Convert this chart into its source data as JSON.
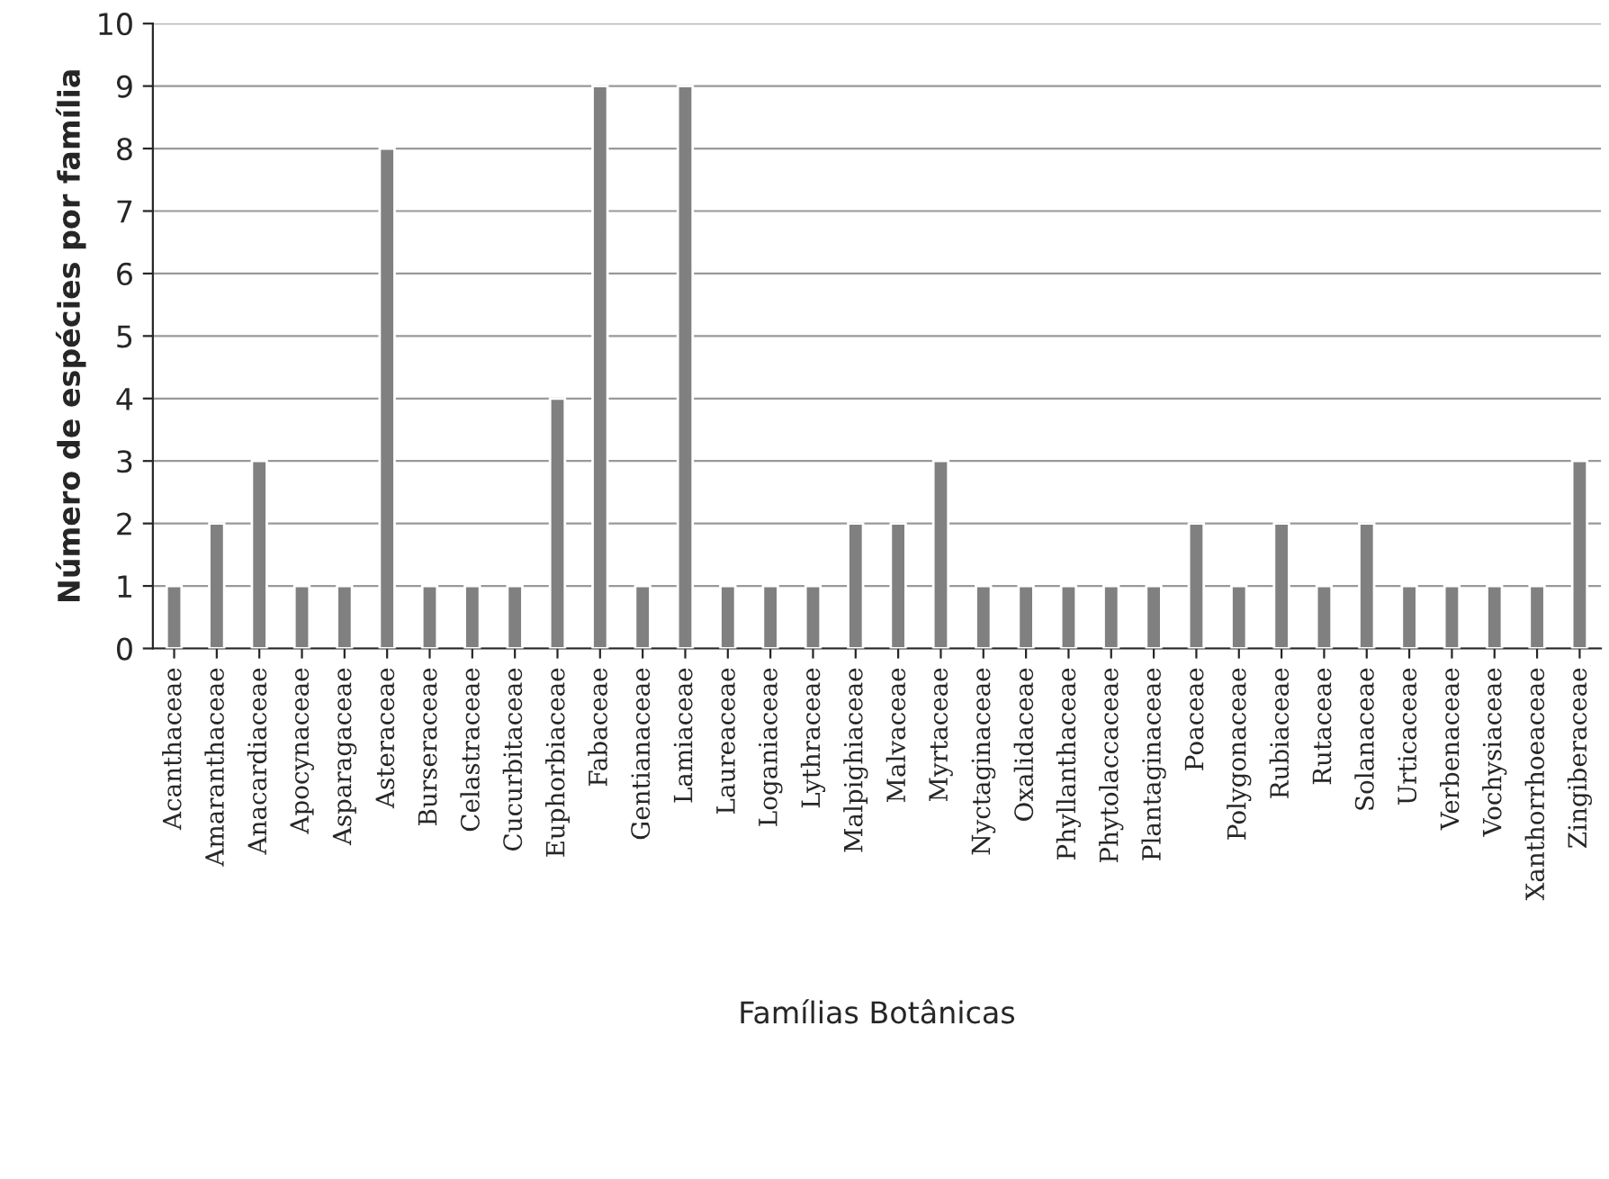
{
  "chart_data": {
    "type": "bar",
    "xlabel": "Famílias Botânicas",
    "ylabel": "Número de espécies por família",
    "categories": [
      "Acanthaceae",
      "Amaranthaceae",
      "Anacardiaceae",
      "Apocynaceae",
      "Asparagaceae",
      "Asteraceae",
      "Burseraceae",
      "Celastraceae",
      "Cucurbitaceae",
      "Euphorbiaceae",
      "Fabaceae",
      "Gentianaceae",
      "Lamiaceae",
      "Laureaceae",
      "Loganiaceae",
      "Lythraceae",
      "Malpighiaceae",
      "Malvaceae",
      "Myrtaceae",
      "Nyctaginaceae",
      "Oxalidaceae",
      "Phyllanthaceae",
      "Phytolaccaceae",
      "Plantaginaceae",
      "Poaceae",
      "Polygonaceae",
      "Rubiaceae",
      "Rutaceae",
      "Solanaceae",
      "Urticaceae",
      "Verbenaceae",
      "Vochysiaceae",
      "Xanthorrhoeaceae",
      "Zingiberaceae"
    ],
    "values": [
      1,
      2,
      3,
      1,
      1,
      8,
      1,
      1,
      1,
      4,
      9,
      1,
      9,
      1,
      1,
      1,
      2,
      2,
      3,
      1,
      1,
      1,
      1,
      1,
      2,
      1,
      2,
      1,
      2,
      1,
      1,
      1,
      1,
      3
    ],
    "color": "#808080",
    "ylim": [
      0,
      10
    ],
    "yticks": [
      0,
      1,
      2,
      3,
      4,
      5,
      6,
      7,
      8,
      9,
      10
    ],
    "grid": "y"
  }
}
